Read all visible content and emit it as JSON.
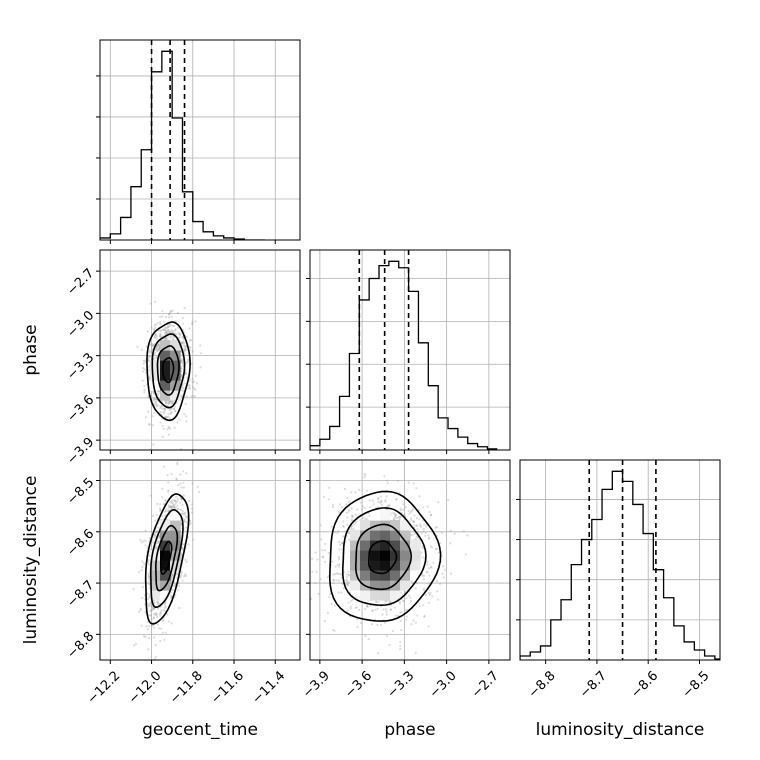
{
  "chart_data": {
    "type": "corner",
    "parameters": [
      "geocent_time",
      "phase",
      "luminosity_distance"
    ],
    "axis_labels": {
      "geocent_time": "geocent_time",
      "phase": "phase",
      "luminosity_distance": "luminosity_distance"
    },
    "ranges": {
      "geocent_time": [
        -12.25,
        -11.28
      ],
      "phase": [
        -3.97,
        -2.55
      ],
      "luminosity_distance": [
        -8.85,
        -8.46
      ]
    },
    "ticks": {
      "geocent_time": [
        -12.2,
        -12.0,
        -11.8,
        -11.6,
        -11.4
      ],
      "phase": [
        -3.9,
        -3.6,
        -3.3,
        -3.0,
        -2.7
      ],
      "luminosity_distance": [
        -8.8,
        -8.7,
        -8.6,
        -8.5
      ]
    },
    "tick_labels": {
      "geocent_time": [
        "−12.2",
        "−12.0",
        "−11.8",
        "−11.6",
        "−11.4"
      ],
      "phase": [
        "−3.9",
        "−3.6",
        "−3.3",
        "−3.0",
        "−2.7"
      ],
      "luminosity_distance": [
        "−8.8",
        "−8.7",
        "−8.6",
        "−8.5"
      ]
    },
    "grid": true,
    "histograms": {
      "geocent_time": {
        "bin_edges": [
          -12.25,
          -12.2,
          -12.15,
          -12.1,
          -12.05,
          -12.0,
          -11.95,
          -11.9,
          -11.85,
          -11.8,
          -11.75,
          -11.7,
          -11.65,
          -11.6,
          -11.55,
          -11.5,
          -11.45
        ],
        "counts": [
          2,
          6,
          22,
          52,
          88,
          164,
          184,
          119,
          47,
          18,
          8,
          4,
          2,
          1,
          0,
          0
        ],
        "quantiles": [
          -12.0,
          -11.91,
          -11.84
        ]
      },
      "phase": {
        "bin_edges": [
          -3.97,
          -3.9,
          -3.83,
          -3.76,
          -3.69,
          -3.62,
          -3.55,
          -3.48,
          -3.41,
          -3.34,
          -3.27,
          -3.2,
          -3.13,
          -3.06,
          -2.99,
          -2.92,
          -2.85,
          -2.78,
          -2.71,
          -2.64
        ],
        "counts": [
          4,
          10,
          22,
          50,
          90,
          140,
          160,
          172,
          176,
          170,
          148,
          100,
          60,
          30,
          20,
          12,
          6,
          3,
          1
        ],
        "quantiles": [
          -3.62,
          -3.44,
          -3.27
        ]
      },
      "luminosity_distance": {
        "bin_edges": [
          -8.85,
          -8.83,
          -8.81,
          -8.79,
          -8.77,
          -8.75,
          -8.73,
          -8.71,
          -8.69,
          -8.67,
          -8.65,
          -8.63,
          -8.61,
          -8.59,
          -8.57,
          -8.55,
          -8.53,
          -8.51,
          -8.49,
          -8.47,
          -8.45
        ],
        "counts": [
          4,
          8,
          14,
          40,
          60,
          95,
          120,
          140,
          170,
          188,
          178,
          155,
          126,
          90,
          62,
          34,
          18,
          10,
          4,
          1
        ],
        "quantiles": [
          -8.715,
          -8.65,
          -8.585
        ]
      }
    },
    "densities": [
      {
        "x": "geocent_time",
        "y": "phase",
        "mean": [
          -11.92,
          -3.4
        ],
        "sd": [
          0.045,
          0.15
        ],
        "rho": 0.05
      },
      {
        "x": "geocent_time",
        "y": "luminosity_distance",
        "mean": [
          -11.93,
          -8.65
        ],
        "sd": [
          0.045,
          0.055
        ],
        "rho": 0.55
      },
      {
        "x": "phase",
        "y": "luminosity_distance",
        "mean": [
          -3.46,
          -8.65
        ],
        "sd": [
          0.17,
          0.055
        ],
        "rho": 0.05
      }
    ],
    "contour_levels_sigma": [
      0.5,
      1.0,
      1.5,
      2.0
    ]
  }
}
